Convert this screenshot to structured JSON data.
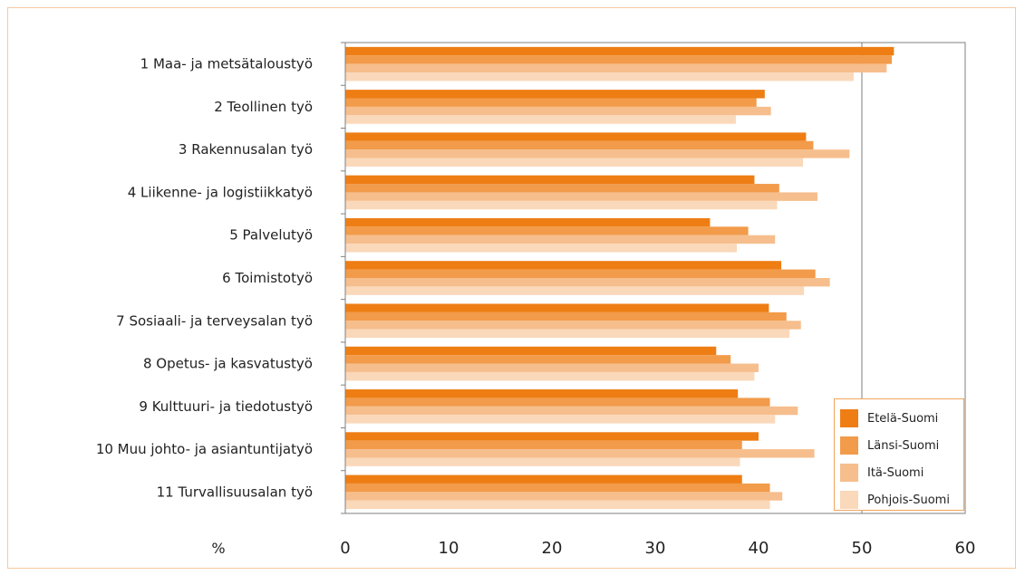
{
  "chart_data": {
    "type": "bar",
    "orientation": "horizontal",
    "x_axis_unit": "%",
    "xlim": [
      0,
      60
    ],
    "x_ticks": [
      0,
      10,
      20,
      30,
      40,
      50,
      60
    ],
    "gridlines": [
      50
    ],
    "legend_position": "bottom-right",
    "categories": [
      "1 Maa- ja metsätaloustyö",
      "2 Teollinen työ",
      "3 Rakennusalan työ",
      "4 Liikenne- ja logistiikkatyö",
      "5 Palvelutyö",
      "6 Toimistotyö",
      "7 Sosiaali- ja terveysalan työ",
      "8 Opetus- ja kasvatustyö",
      "9 Kulttuuri- ja tiedotustyö",
      "10 Muu johto- ja asiantuntijatyö",
      "11 Turvallisuusalan työ"
    ],
    "series": [
      {
        "name": "Etelä-Suomi",
        "color": "#ee7e14",
        "values": [
          53.1,
          40.6,
          44.6,
          39.6,
          35.3,
          42.2,
          41.0,
          35.9,
          38.0,
          40.0,
          38.4
        ]
      },
      {
        "name": "Länsi-Suomi",
        "color": "#f29b4a",
        "values": [
          52.9,
          39.8,
          45.3,
          42.0,
          39.0,
          45.5,
          42.7,
          37.3,
          41.1,
          38.4,
          41.1
        ]
      },
      {
        "name": "Itä-Suomi",
        "color": "#f6be8c",
        "values": [
          52.4,
          41.2,
          48.8,
          45.7,
          41.6,
          46.9,
          44.1,
          40.0,
          43.8,
          45.4,
          42.3
        ]
      },
      {
        "name": "Pohjois-Suomi",
        "color": "#fad8ba",
        "values": [
          49.2,
          37.8,
          44.3,
          41.8,
          37.9,
          44.4,
          43.0,
          39.6,
          41.6,
          38.2,
          41.1
        ]
      }
    ]
  }
}
